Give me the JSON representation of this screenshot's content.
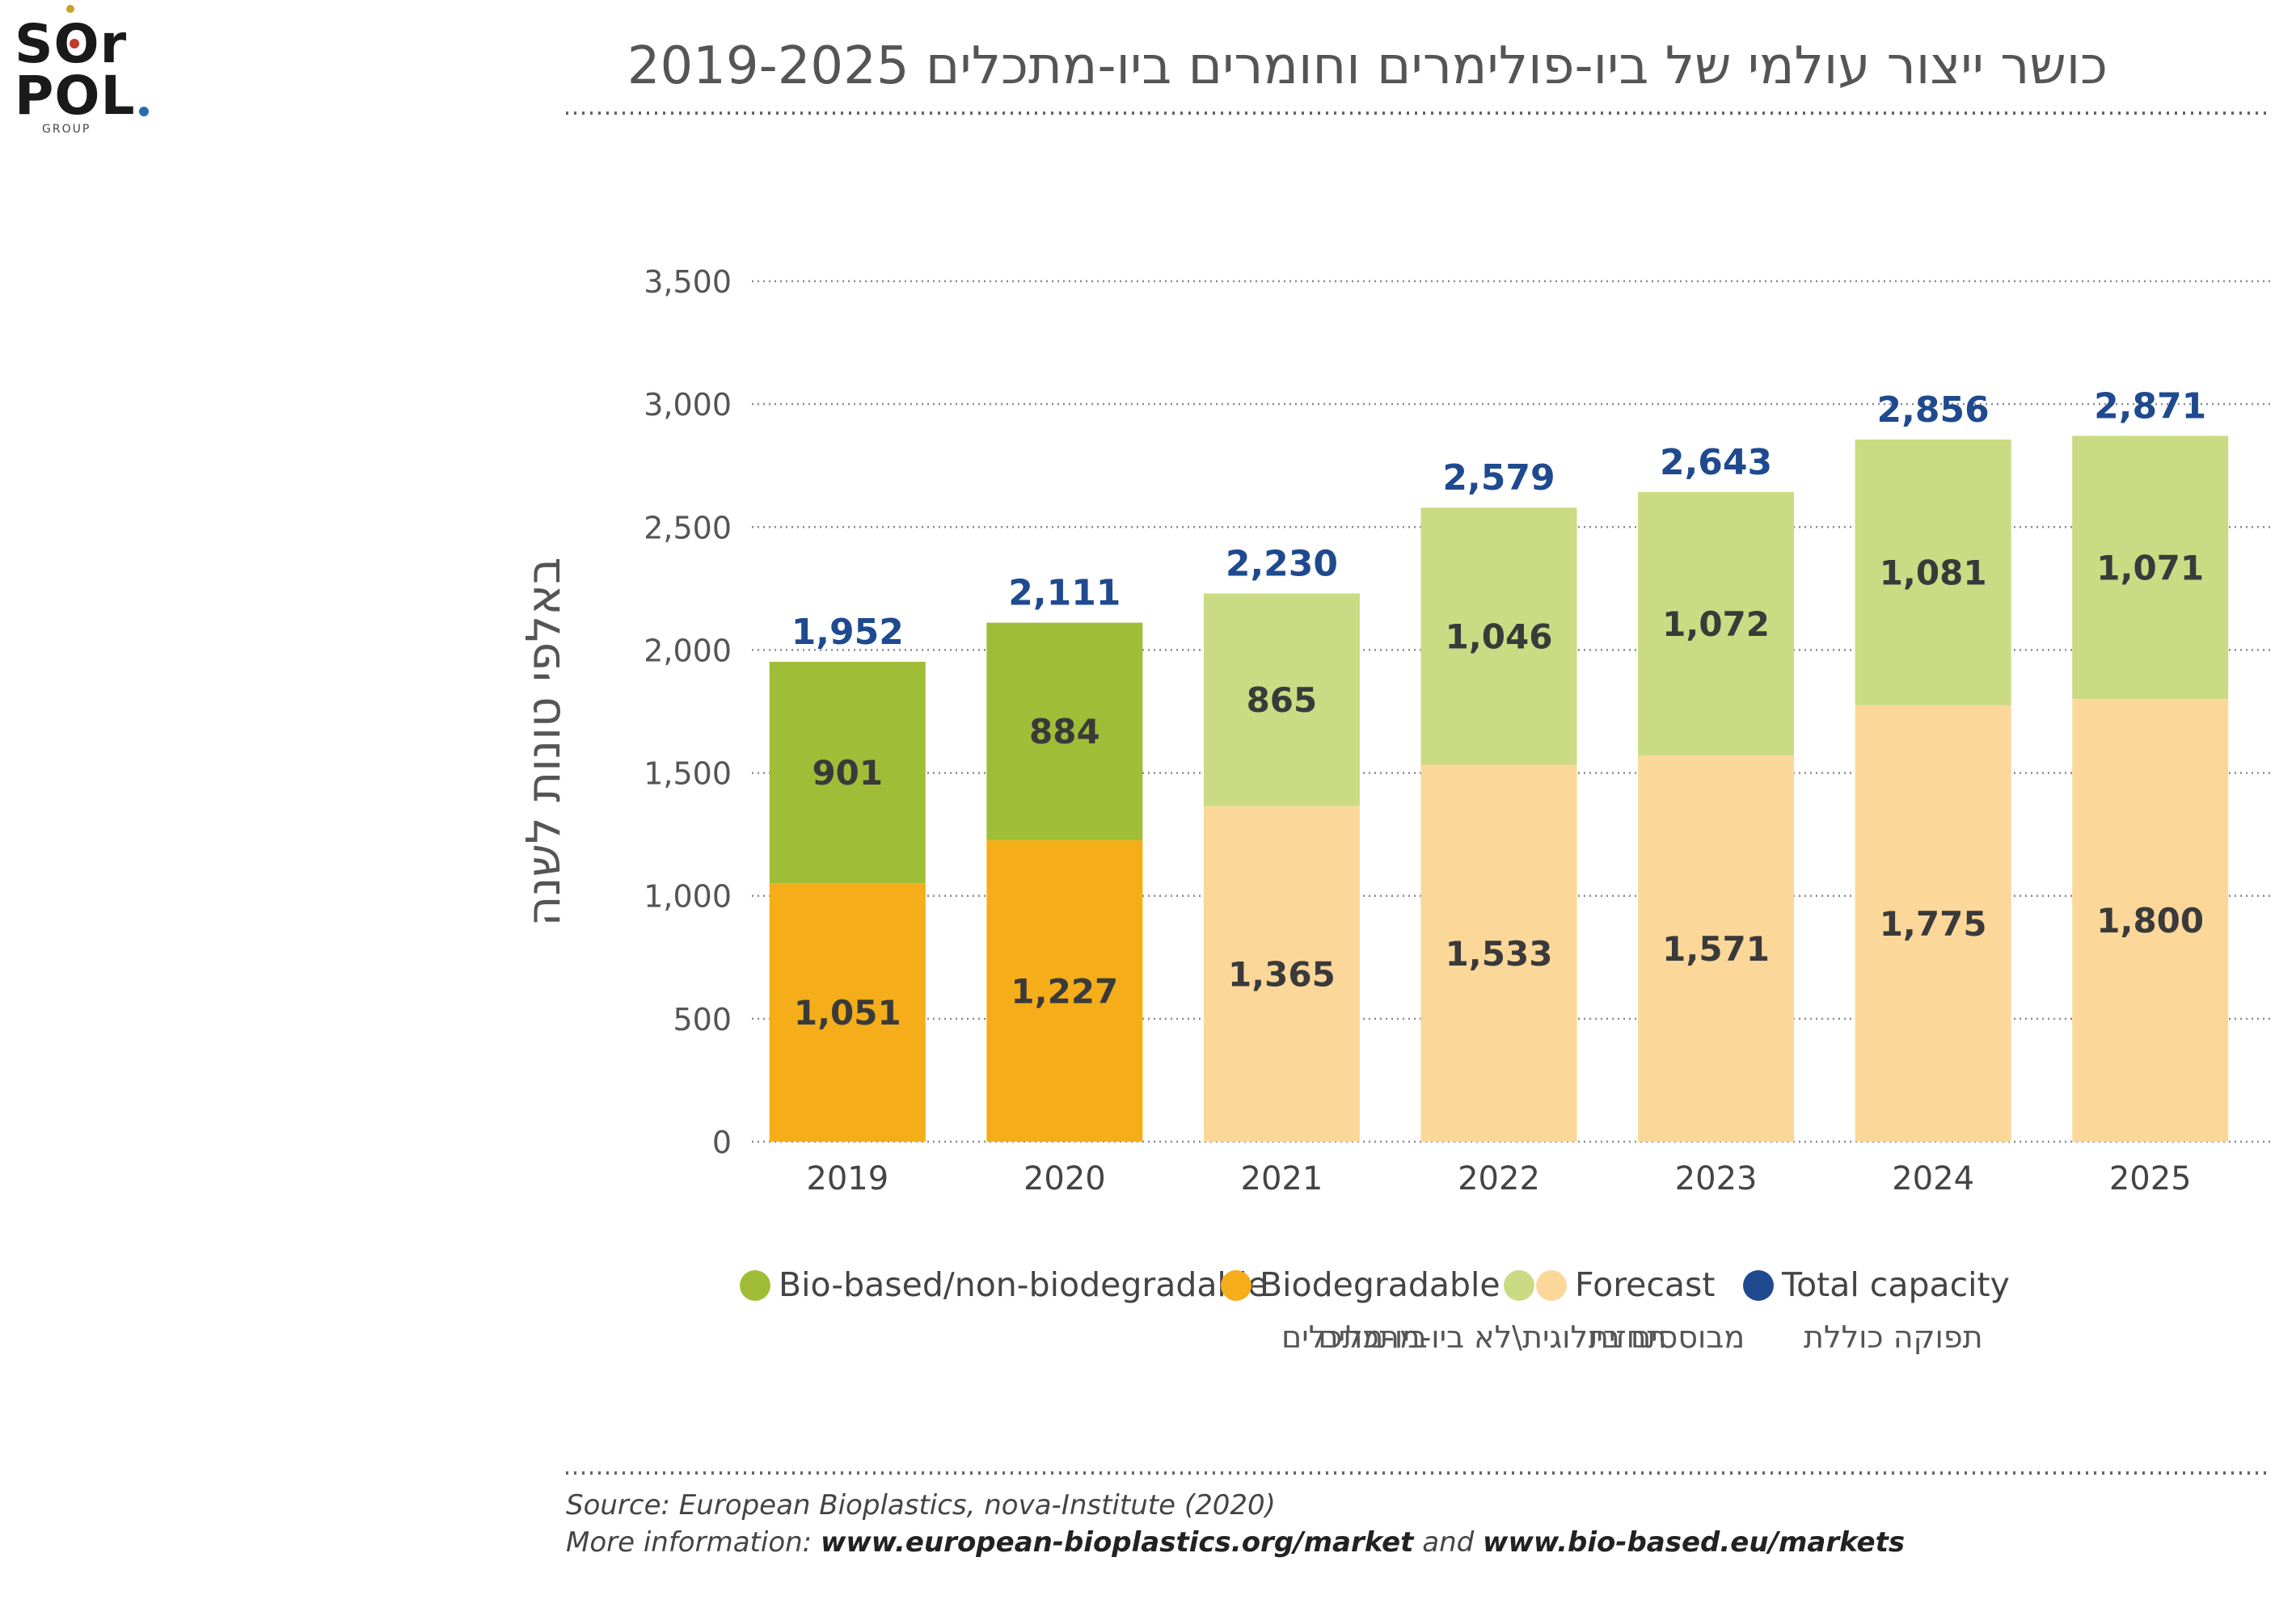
{
  "logo": {
    "line1": "SOr",
    "line2": "POL",
    "group": "GROUP"
  },
  "title": "כושר ייצור עולמי של ביו-פולימרים וחומרים ביו-מתכלים 2019-2025",
  "chart_data": {
    "type": "bar",
    "stacked": true,
    "categories": [
      "2019",
      "2020",
      "2021",
      "2022",
      "2023",
      "2024",
      "2025"
    ],
    "forecast_from_index": 2,
    "series": [
      {
        "name": "Biodegradable",
        "values": [
          1051,
          1227,
          1365,
          1533,
          1571,
          1775,
          1800
        ],
        "labels": [
          "1,051",
          "1,227",
          "1,365",
          "1,533",
          "1,571",
          "1,775",
          "1,800"
        ]
      },
      {
        "name": "Bio-based/non-biodegradable",
        "values": [
          901,
          884,
          865,
          1046,
          1072,
          1081,
          1071
        ],
        "labels": [
          "901",
          "884",
          "865",
          "1,046",
          "1,072",
          "1,081",
          "1,071"
        ]
      }
    ],
    "totals": [
      1952,
      2111,
      2230,
      2579,
      2643,
      2856,
      2871
    ],
    "total_labels": [
      "1,952",
      "2,111",
      "2,230",
      "2,579",
      "2,643",
      "2,856",
      "2,871"
    ],
    "ylim": [
      0,
      3500
    ],
    "yticks": [
      0,
      500,
      1000,
      1500,
      2000,
      2500,
      3000,
      3500
    ],
    "ytick_labels": [
      "0",
      "500",
      "1,000",
      "1,500",
      "2,000",
      "2,500",
      "3,000",
      "3,500"
    ],
    "ylabel": "באלפי טונות לשנה",
    "xlabel": "",
    "grid": true,
    "colors": {
      "biodegradable": "#f5ae19",
      "bio_based": "#a0bd38",
      "forecast_biodegradable": "#fcd79a",
      "forecast_bio_based": "#cadb84",
      "total": "#1f4a8f",
      "forecast_legend_green": "#cadb84",
      "forecast_legend_orange": "#fcd79a"
    }
  },
  "legend": {
    "bio_based": {
      "en": "Bio-based/non-biodegradable",
      "he": "מבוססים ביולוגית\\לא ביו-מתכלים"
    },
    "biodegradable": {
      "en": "Biodegradable",
      "he": "ביו-מתכלים"
    },
    "forecast": {
      "en": "Forecast",
      "he": "תחזית"
    },
    "total": {
      "en": "Total capacity",
      "he": "תפוקה כוללת"
    }
  },
  "source": {
    "line1": "Source: European Bioplastics, nova-Institute (2020)",
    "line2_prefix": "More information: ",
    "link1": "www.european-bioplastics.org/market",
    "and": " and ",
    "link2": "www.bio-based.eu/markets"
  }
}
